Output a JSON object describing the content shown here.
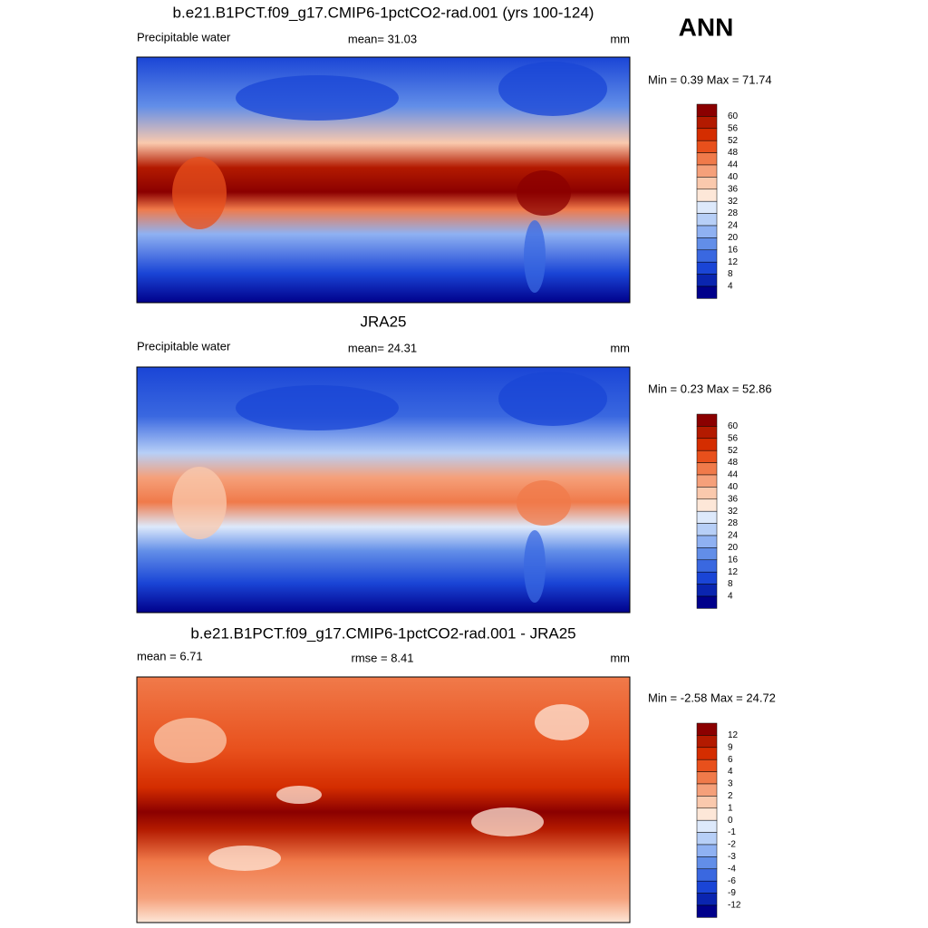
{
  "corner_label": "ANN",
  "panels": [
    {
      "title": "b.e21.B1PCT.f09_g17.CMIP6-1pctCO2-rad.001 (yrs 100-124)",
      "left": "Precipitable water",
      "center": "mean=  31.03",
      "right": "mm",
      "minmax": "Min =   0.39 Max =  71.74",
      "levels": [
        "60",
        "56",
        "52",
        "48",
        "44",
        "40",
        "36",
        "32",
        "28",
        "24",
        "20",
        "16",
        "12",
        "8",
        "4"
      ]
    },
    {
      "title": "JRA25",
      "left": "Precipitable water",
      "center": "mean=  24.31",
      "right": "mm",
      "minmax": "Min =   0.23 Max =  52.86",
      "levels": [
        "60",
        "56",
        "52",
        "48",
        "44",
        "40",
        "36",
        "32",
        "28",
        "24",
        "20",
        "16",
        "12",
        "8",
        "4"
      ]
    },
    {
      "title": "b.e21.B1PCT.f09_g17.CMIP6-1pctCO2-rad.001 - JRA25",
      "left": "mean =   6.71",
      "center": "rmse =   8.41",
      "right": "mm",
      "minmax": "Min =  -2.58 Max =  24.72",
      "levels": [
        "12",
        "9",
        "6",
        "4",
        "3",
        "2",
        "1",
        "0",
        "-1",
        "-2",
        "-3",
        "-4",
        "-6",
        "-9",
        "-12"
      ]
    }
  ]
}
